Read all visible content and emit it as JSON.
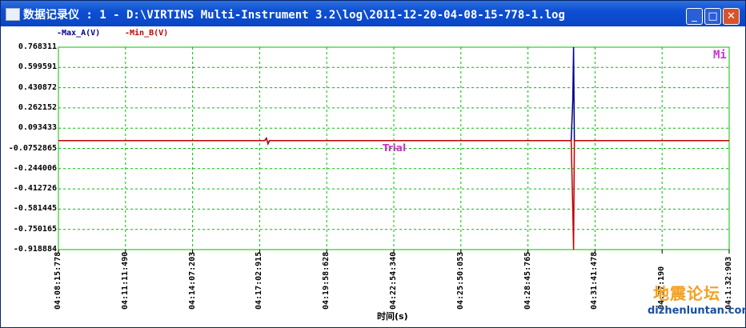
{
  "window": {
    "title": "数据记录仪 : 1 - D:\\VIRTINS Multi-Instrument 3.2\\log\\2011-12-20-04-08-15-778-1.log"
  },
  "titlebar_buttons": {
    "minimize": "_",
    "maximize": "□",
    "close": "✕"
  },
  "legend": {
    "series_a": "-Max_A(V)",
    "series_b": "-Min_B(V)"
  },
  "overlay": {
    "corner_mark": "Mi",
    "trial": "Trial"
  },
  "watermark": {
    "text": "地震论坛",
    "url": "dizhenluntan.com"
  },
  "colors": {
    "grid": "#00c000",
    "series_a": "#00008b",
    "series_b": "#c00000",
    "overlay": "#cc33cc"
  },
  "chart_data": {
    "type": "line",
    "xlabel": "时间(s)",
    "ylabel": "",
    "yticks": [
      "0.768311",
      "0.599591",
      "0.430872",
      "0.262152",
      "0.093433",
      "-0.0752865",
      "-0.244006",
      "-0.412726",
      "-0.581445",
      "-0.750165",
      "-0.918884"
    ],
    "xticks": [
      "04:08:15:778",
      "04:11:11:490",
      "04:14:07:203",
      "04:17:02:915",
      "04:19:58:628",
      "04:22:54:340",
      "04:25:50:053",
      "04:28:45:765",
      "04:31:41:478",
      "04:37:190",
      "04:1:32:903"
    ],
    "ylim": [
      -0.918884,
      0.768311
    ],
    "grid": true,
    "series": [
      {
        "name": "-Max_A(V)",
        "baseline": -0.01,
        "spike_at_fraction": 0.768,
        "spike_max": 0.768311
      },
      {
        "name": "-Min_B(V)",
        "baseline": -0.01,
        "spike_at_fraction": 0.768,
        "spike_min": -0.918884
      }
    ]
  }
}
